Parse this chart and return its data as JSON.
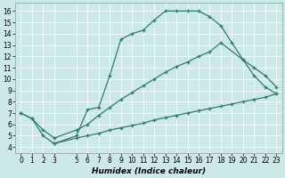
{
  "line1_x": [
    0,
    1,
    2,
    3,
    5,
    6,
    7,
    8,
    9,
    10,
    11,
    12,
    13,
    14,
    15,
    16,
    17,
    18,
    19,
    20,
    21,
    22,
    23
  ],
  "line1_y": [
    7.0,
    6.5,
    5.0,
    4.3,
    5.0,
    7.3,
    7.5,
    10.3,
    13.5,
    14.0,
    14.3,
    15.2,
    16.0,
    16.0,
    16.0,
    16.0,
    15.5,
    14.7,
    13.2,
    11.7,
    10.3,
    9.3,
    8.7
  ],
  "line2_x": [
    0,
    1,
    2,
    3,
    5,
    6,
    7,
    8,
    9,
    10,
    11,
    12,
    13,
    14,
    15,
    16,
    17,
    18,
    20,
    21,
    22,
    23
  ],
  "line2_y": [
    7.0,
    6.5,
    5.5,
    4.8,
    5.5,
    6.0,
    6.8,
    7.5,
    8.2,
    8.8,
    9.4,
    10.0,
    10.6,
    11.1,
    11.5,
    12.0,
    12.4,
    13.2,
    11.7,
    11.0,
    10.3,
    9.3
  ],
  "line3_x": [
    3,
    5,
    6,
    7,
    8,
    9,
    10,
    11,
    12,
    13,
    14,
    15,
    16,
    17,
    18,
    19,
    20,
    21,
    22,
    23
  ],
  "line3_y": [
    4.3,
    4.8,
    5.0,
    5.2,
    5.5,
    5.7,
    5.9,
    6.1,
    6.4,
    6.6,
    6.8,
    7.0,
    7.2,
    7.4,
    7.6,
    7.8,
    8.0,
    8.2,
    8.4,
    8.7
  ],
  "color": "#2e7d6e",
  "bg_color": "#cce8e8",
  "xlabel": "Humidex (Indice chaleur)",
  "xlim": [
    -0.5,
    23.5
  ],
  "ylim": [
    3.5,
    16.7
  ],
  "yticks": [
    4,
    5,
    6,
    7,
    8,
    9,
    10,
    11,
    12,
    13,
    14,
    15,
    16
  ],
  "xticks": [
    0,
    1,
    2,
    3,
    5,
    6,
    7,
    8,
    9,
    10,
    11,
    12,
    13,
    14,
    15,
    16,
    17,
    18,
    19,
    20,
    21,
    22,
    23
  ],
  "grid_color": "#ffffff",
  "tick_fontsize": 5.5,
  "xlabel_fontsize": 6.5
}
